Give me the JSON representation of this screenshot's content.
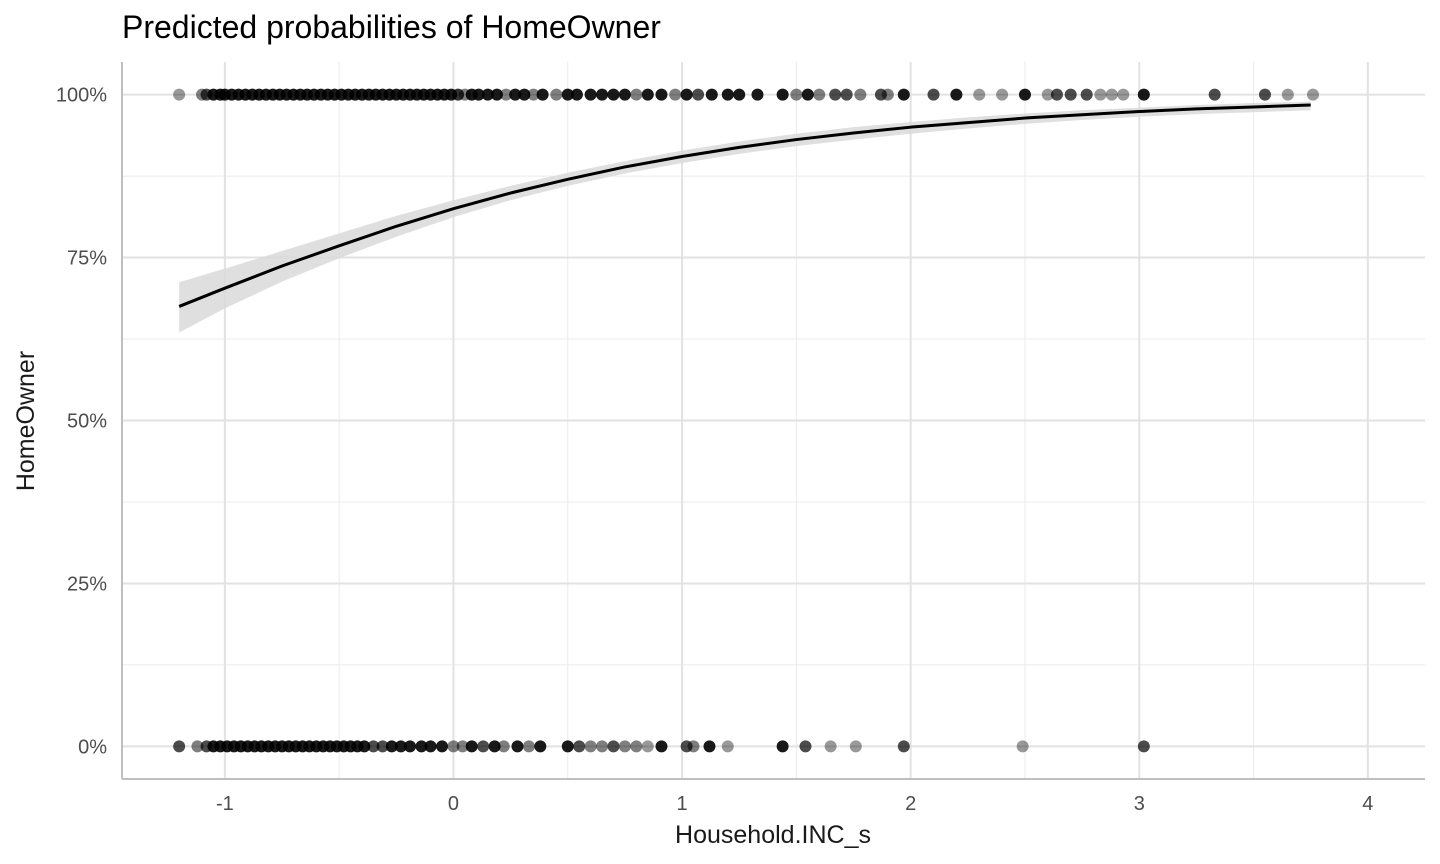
{
  "chart_data": {
    "type": "scatter",
    "title": "Predicted probabilities of HomeOwner",
    "xlabel": "Household.INC_s",
    "ylabel": "HomeOwner",
    "xlim": [
      -1.45,
      4.25
    ],
    "ylim": [
      -0.05,
      1.05
    ],
    "x_ticks": [
      -1,
      0,
      1,
      2,
      3,
      4
    ],
    "x_tick_labels": [
      "-1",
      "0",
      "1",
      "2",
      "3",
      "4"
    ],
    "y_ticks": [
      0,
      0.25,
      0.5,
      0.75,
      1.0
    ],
    "y_tick_labels": [
      "0%",
      "25%",
      "50%",
      "75%",
      "100%"
    ],
    "grid": true,
    "colors": {
      "points": "#000000",
      "line": "#000000",
      "ribbon": "#d9d9d9",
      "grid": "#ebebeb",
      "axis": "#bfbfbf"
    },
    "fitted_curve": {
      "x": [
        -1.2,
        -1.0,
        -0.75,
        -0.5,
        -0.25,
        0.0,
        0.25,
        0.5,
        0.75,
        1.0,
        1.25,
        1.5,
        1.75,
        2.0,
        2.25,
        2.5,
        2.75,
        3.0,
        3.25,
        3.5,
        3.75
      ],
      "y": [
        0.675,
        0.703,
        0.737,
        0.768,
        0.798,
        0.825,
        0.849,
        0.87,
        0.889,
        0.905,
        0.919,
        0.931,
        0.941,
        0.95,
        0.957,
        0.964,
        0.969,
        0.974,
        0.978,
        0.981,
        0.984
      ],
      "ci_lower": [
        0.635,
        0.672,
        0.713,
        0.749,
        0.782,
        0.812,
        0.838,
        0.86,
        0.879,
        0.895,
        0.909,
        0.921,
        0.931,
        0.94,
        0.948,
        0.955,
        0.961,
        0.966,
        0.97,
        0.973,
        0.976
      ],
      "ci_upper": [
        0.712,
        0.733,
        0.76,
        0.787,
        0.814,
        0.838,
        0.86,
        0.88,
        0.898,
        0.914,
        0.928,
        0.94,
        0.95,
        0.958,
        0.965,
        0.971,
        0.976,
        0.98,
        0.984,
        0.987,
        0.989
      ]
    },
    "series": [
      {
        "y": 1,
        "points": [
          {
            "x": -1.2,
            "a": 0.4
          },
          {
            "x": -1.1,
            "a": 0.5
          },
          {
            "x": -1.08,
            "a": 0.7
          },
          {
            "x": -1.05,
            "a": 0.9
          },
          {
            "x": -1.02,
            "a": 0.9
          },
          {
            "x": -1.0,
            "a": 0.9
          },
          {
            "x": -0.97,
            "a": 0.9
          },
          {
            "x": -0.94,
            "a": 0.9
          },
          {
            "x": -0.91,
            "a": 0.9
          },
          {
            "x": -0.88,
            "a": 0.9
          },
          {
            "x": -0.85,
            "a": 0.9
          },
          {
            "x": -0.82,
            "a": 0.9
          },
          {
            "x": -0.79,
            "a": 0.9
          },
          {
            "x": -0.76,
            "a": 0.9
          },
          {
            "x": -0.73,
            "a": 0.9
          },
          {
            "x": -0.7,
            "a": 0.9
          },
          {
            "x": -0.67,
            "a": 0.9
          },
          {
            "x": -0.64,
            "a": 0.9
          },
          {
            "x": -0.61,
            "a": 0.9
          },
          {
            "x": -0.58,
            "a": 0.9
          },
          {
            "x": -0.55,
            "a": 0.9
          },
          {
            "x": -0.52,
            "a": 0.9
          },
          {
            "x": -0.49,
            "a": 0.9
          },
          {
            "x": -0.46,
            "a": 0.9
          },
          {
            "x": -0.43,
            "a": 0.9
          },
          {
            "x": -0.4,
            "a": 0.9
          },
          {
            "x": -0.37,
            "a": 0.9
          },
          {
            "x": -0.34,
            "a": 0.9
          },
          {
            "x": -0.31,
            "a": 0.9
          },
          {
            "x": -0.28,
            "a": 0.9
          },
          {
            "x": -0.25,
            "a": 0.9
          },
          {
            "x": -0.22,
            "a": 0.9
          },
          {
            "x": -0.19,
            "a": 0.9
          },
          {
            "x": -0.16,
            "a": 0.9
          },
          {
            "x": -0.13,
            "a": 0.9
          },
          {
            "x": -0.1,
            "a": 0.9
          },
          {
            "x": -0.07,
            "a": 0.9
          },
          {
            "x": -0.04,
            "a": 0.9
          },
          {
            "x": -0.01,
            "a": 0.9
          },
          {
            "x": 0.02,
            "a": 0.8
          },
          {
            "x": 0.05,
            "a": 0.5
          },
          {
            "x": 0.08,
            "a": 0.9
          },
          {
            "x": 0.11,
            "a": 0.9
          },
          {
            "x": 0.15,
            "a": 0.9
          },
          {
            "x": 0.19,
            "a": 0.9
          },
          {
            "x": 0.23,
            "a": 0.5
          },
          {
            "x": 0.27,
            "a": 0.9
          },
          {
            "x": 0.31,
            "a": 0.9
          },
          {
            "x": 0.35,
            "a": 0.5
          },
          {
            "x": 0.39,
            "a": 0.9
          },
          {
            "x": 0.45,
            "a": 0.5
          },
          {
            "x": 0.5,
            "a": 0.9
          },
          {
            "x": 0.54,
            "a": 0.9
          },
          {
            "x": 0.6,
            "a": 0.9
          },
          {
            "x": 0.65,
            "a": 0.9
          },
          {
            "x": 0.7,
            "a": 0.9
          },
          {
            "x": 0.75,
            "a": 0.9
          },
          {
            "x": 0.8,
            "a": 0.5
          },
          {
            "x": 0.85,
            "a": 0.9
          },
          {
            "x": 0.91,
            "a": 0.9
          },
          {
            "x": 0.97,
            "a": 0.5
          },
          {
            "x": 1.02,
            "a": 0.9
          },
          {
            "x": 1.07,
            "a": 0.7
          },
          {
            "x": 1.13,
            "a": 0.9
          },
          {
            "x": 1.2,
            "a": 0.9
          },
          {
            "x": 1.25,
            "a": 0.9
          },
          {
            "x": 1.33,
            "a": 0.9
          },
          {
            "x": 1.44,
            "a": 0.9
          },
          {
            "x": 1.5,
            "a": 0.5
          },
          {
            "x": 1.55,
            "a": 0.9
          },
          {
            "x": 1.6,
            "a": 0.5
          },
          {
            "x": 1.67,
            "a": 0.7
          },
          {
            "x": 1.72,
            "a": 0.7
          },
          {
            "x": 1.78,
            "a": 0.5
          },
          {
            "x": 1.87,
            "a": 0.7
          },
          {
            "x": 1.9,
            "a": 0.5
          },
          {
            "x": 1.97,
            "a": 0.9
          },
          {
            "x": 2.1,
            "a": 0.7
          },
          {
            "x": 2.2,
            "a": 0.9
          },
          {
            "x": 2.3,
            "a": 0.4
          },
          {
            "x": 2.4,
            "a": 0.4
          },
          {
            "x": 2.5,
            "a": 0.9
          },
          {
            "x": 2.6,
            "a": 0.4
          },
          {
            "x": 2.64,
            "a": 0.7
          },
          {
            "x": 2.7,
            "a": 0.7
          },
          {
            "x": 2.77,
            "a": 0.7
          },
          {
            "x": 2.83,
            "a": 0.4
          },
          {
            "x": 2.88,
            "a": 0.4
          },
          {
            "x": 2.93,
            "a": 0.4
          },
          {
            "x": 3.02,
            "a": 0.9
          },
          {
            "x": 3.33,
            "a": 0.7
          },
          {
            "x": 3.55,
            "a": 0.7
          },
          {
            "x": 3.65,
            "a": 0.4
          },
          {
            "x": 3.76,
            "a": 0.4
          }
        ]
      },
      {
        "y": 0,
        "points": [
          {
            "x": -1.2,
            "a": 0.7
          },
          {
            "x": -1.12,
            "a": 0.5
          },
          {
            "x": -1.08,
            "a": 0.7
          },
          {
            "x": -1.05,
            "a": 0.9
          },
          {
            "x": -1.02,
            "a": 0.9
          },
          {
            "x": -0.99,
            "a": 0.9
          },
          {
            "x": -0.96,
            "a": 0.9
          },
          {
            "x": -0.93,
            "a": 0.9
          },
          {
            "x": -0.9,
            "a": 0.9
          },
          {
            "x": -0.87,
            "a": 0.9
          },
          {
            "x": -0.84,
            "a": 0.9
          },
          {
            "x": -0.81,
            "a": 0.9
          },
          {
            "x": -0.78,
            "a": 0.9
          },
          {
            "x": -0.75,
            "a": 0.9
          },
          {
            "x": -0.72,
            "a": 0.9
          },
          {
            "x": -0.69,
            "a": 0.9
          },
          {
            "x": -0.66,
            "a": 0.9
          },
          {
            "x": -0.63,
            "a": 0.9
          },
          {
            "x": -0.6,
            "a": 0.9
          },
          {
            "x": -0.57,
            "a": 0.9
          },
          {
            "x": -0.54,
            "a": 0.9
          },
          {
            "x": -0.51,
            "a": 0.9
          },
          {
            "x": -0.48,
            "a": 0.9
          },
          {
            "x": -0.45,
            "a": 0.9
          },
          {
            "x": -0.42,
            "a": 0.9
          },
          {
            "x": -0.39,
            "a": 0.9
          },
          {
            "x": -0.35,
            "a": 0.7
          },
          {
            "x": -0.31,
            "a": 0.7
          },
          {
            "x": -0.27,
            "a": 0.9
          },
          {
            "x": -0.23,
            "a": 0.9
          },
          {
            "x": -0.19,
            "a": 0.9
          },
          {
            "x": -0.14,
            "a": 0.9
          },
          {
            "x": -0.1,
            "a": 0.9
          },
          {
            "x": -0.05,
            "a": 0.9
          },
          {
            "x": 0.0,
            "a": 0.5
          },
          {
            "x": 0.04,
            "a": 0.5
          },
          {
            "x": 0.08,
            "a": 0.9
          },
          {
            "x": 0.13,
            "a": 0.7
          },
          {
            "x": 0.18,
            "a": 0.9
          },
          {
            "x": 0.22,
            "a": 0.5
          },
          {
            "x": 0.28,
            "a": 0.9
          },
          {
            "x": 0.33,
            "a": 0.5
          },
          {
            "x": 0.38,
            "a": 0.9
          },
          {
            "x": 0.5,
            "a": 0.9
          },
          {
            "x": 0.55,
            "a": 0.7
          },
          {
            "x": 0.6,
            "a": 0.5
          },
          {
            "x": 0.65,
            "a": 0.5
          },
          {
            "x": 0.7,
            "a": 0.7
          },
          {
            "x": 0.75,
            "a": 0.5
          },
          {
            "x": 0.8,
            "a": 0.5
          },
          {
            "x": 0.85,
            "a": 0.4
          },
          {
            "x": 0.91,
            "a": 0.9
          },
          {
            "x": 1.02,
            "a": 0.7
          },
          {
            "x": 1.05,
            "a": 0.5
          },
          {
            "x": 1.12,
            "a": 0.9
          },
          {
            "x": 1.2,
            "a": 0.4
          },
          {
            "x": 1.44,
            "a": 0.9
          },
          {
            "x": 1.54,
            "a": 0.7
          },
          {
            "x": 1.65,
            "a": 0.4
          },
          {
            "x": 1.76,
            "a": 0.4
          },
          {
            "x": 1.97,
            "a": 0.7
          },
          {
            "x": 2.49,
            "a": 0.4
          },
          {
            "x": 3.02,
            "a": 0.7
          }
        ]
      }
    ]
  }
}
